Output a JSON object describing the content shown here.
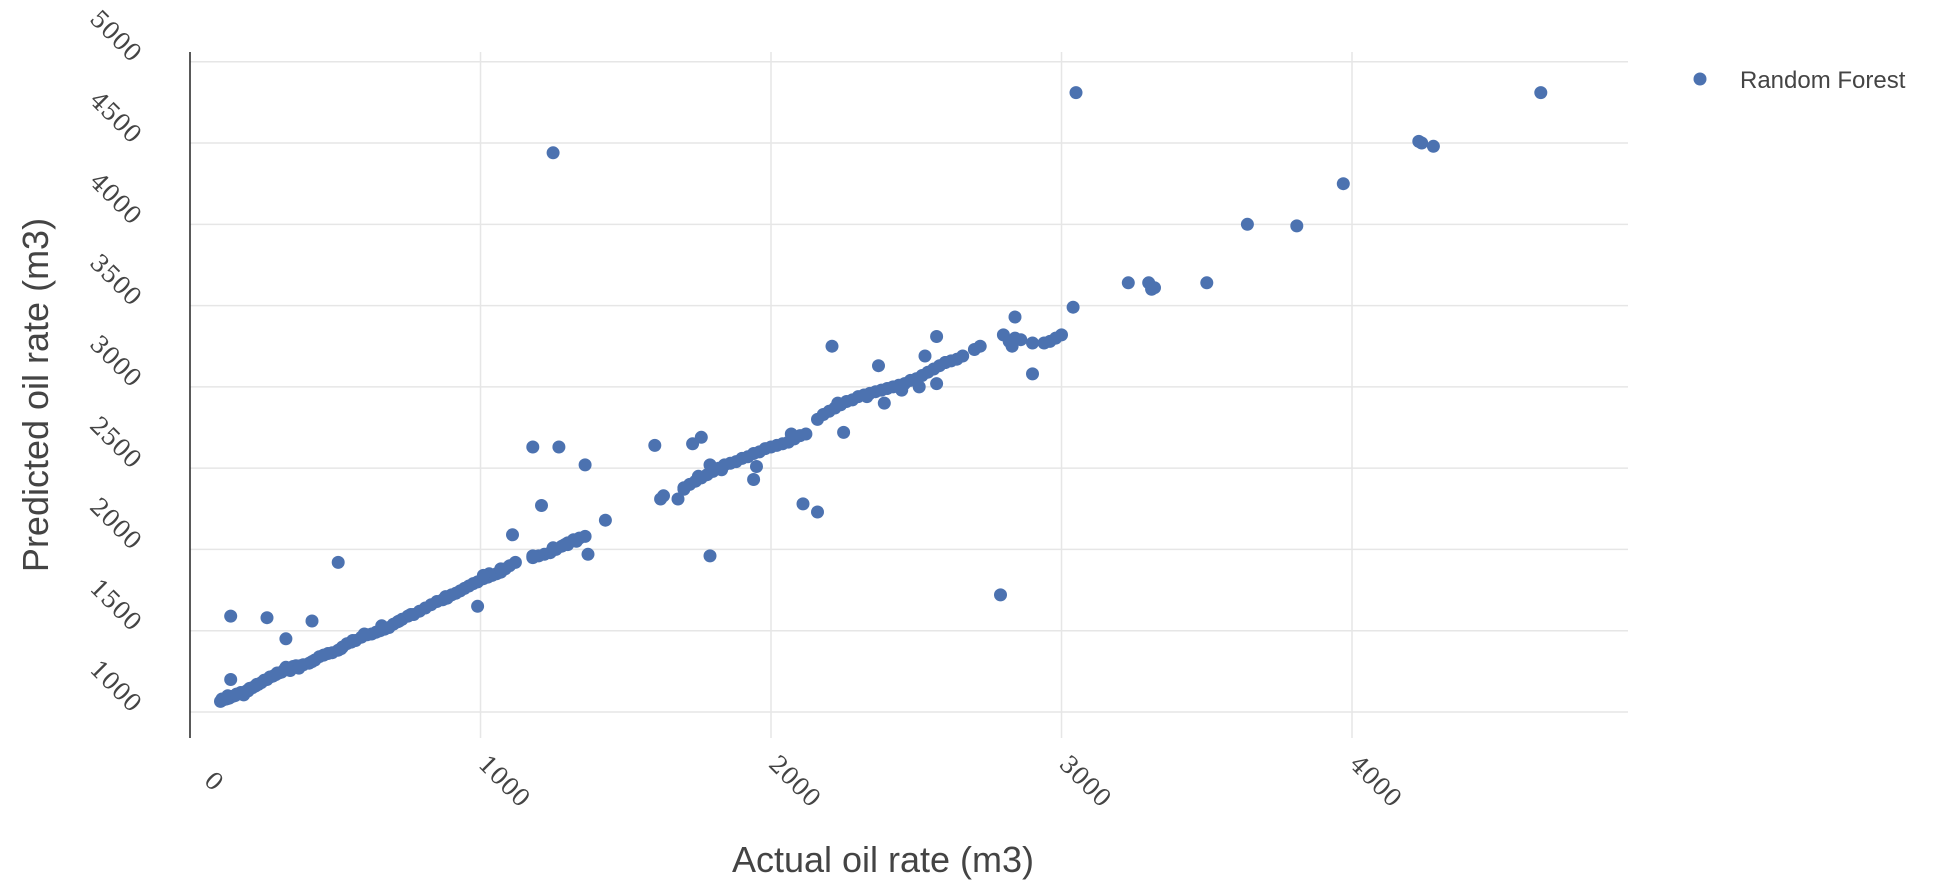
{
  "chart_data": {
    "type": "scatter",
    "title": "",
    "xlabel": "Actual oil rate (m3)",
    "ylabel": "Predicted oil rate (m3)",
    "xlim": [
      0,
      4950
    ],
    "ylim": [
      840,
      5060
    ],
    "xticks": [
      0,
      1000,
      2000,
      3000,
      4000
    ],
    "yticks": [
      1000,
      1500,
      2000,
      2500,
      3000,
      3500,
      4000,
      4500,
      5000
    ],
    "grid": true,
    "legend_position": "top-right",
    "colors": {
      "marker": "#4c72b0"
    },
    "series": [
      {
        "name": "Random Forest",
        "points": [
          [
            105,
            1065
          ],
          [
            115,
            1075
          ],
          [
            125,
            1080
          ],
          [
            135,
            1085
          ],
          [
            145,
            1095
          ],
          [
            155,
            1100
          ],
          [
            165,
            1110
          ],
          [
            175,
            1120
          ],
          [
            185,
            1105
          ],
          [
            195,
            1130
          ],
          [
            205,
            1145
          ],
          [
            215,
            1150
          ],
          [
            225,
            1160
          ],
          [
            235,
            1170
          ],
          [
            245,
            1180
          ],
          [
            255,
            1195
          ],
          [
            265,
            1200
          ],
          [
            275,
            1215
          ],
          [
            285,
            1220
          ],
          [
            295,
            1230
          ],
          [
            305,
            1240
          ],
          [
            315,
            1245
          ],
          [
            325,
            1260
          ],
          [
            335,
            1270
          ],
          [
            345,
            1255
          ],
          [
            355,
            1280
          ],
          [
            365,
            1285
          ],
          [
            375,
            1270
          ],
          [
            390,
            1290
          ],
          [
            410,
            1300
          ],
          [
            430,
            1320
          ],
          [
            445,
            1340
          ],
          [
            460,
            1350
          ],
          [
            475,
            1360
          ],
          [
            490,
            1365
          ],
          [
            510,
            1380
          ],
          [
            525,
            1400
          ],
          [
            540,
            1420
          ],
          [
            555,
            1430
          ],
          [
            570,
            1440
          ],
          [
            590,
            1460
          ],
          [
            610,
            1475
          ],
          [
            625,
            1480
          ],
          [
            640,
            1490
          ],
          [
            655,
            1500
          ],
          [
            670,
            1510
          ],
          [
            685,
            1520
          ],
          [
            700,
            1540
          ],
          [
            715,
            1555
          ],
          [
            730,
            1570
          ],
          [
            750,
            1590
          ],
          [
            770,
            1600
          ],
          [
            790,
            1620
          ],
          [
            810,
            1640
          ],
          [
            830,
            1660
          ],
          [
            850,
            1680
          ],
          [
            870,
            1690
          ],
          [
            885,
            1700
          ],
          [
            900,
            1720
          ],
          [
            915,
            1730
          ],
          [
            930,
            1745
          ],
          [
            945,
            1760
          ],
          [
            960,
            1775
          ],
          [
            975,
            1790
          ],
          [
            990,
            1800
          ],
          [
            1010,
            1820
          ],
          [
            1025,
            1830
          ],
          [
            1040,
            1840
          ],
          [
            1055,
            1850
          ],
          [
            1070,
            1860
          ],
          [
            1085,
            1880
          ],
          [
            1100,
            1900
          ],
          [
            1120,
            1920
          ],
          [
            1180,
            1950
          ],
          [
            1200,
            1960
          ],
          [
            1220,
            1970
          ],
          [
            1240,
            1980
          ],
          [
            1260,
            2000
          ],
          [
            1280,
            2020
          ],
          [
            1300,
            2040
          ],
          [
            1320,
            2060
          ],
          [
            1340,
            2070
          ],
          [
            1360,
            2080
          ],
          [
            1030,
            1850
          ],
          [
            1070,
            1880
          ],
          [
            1180,
            1960
          ],
          [
            1250,
            2010
          ],
          [
            1290,
            2030
          ],
          [
            1330,
            2050
          ],
          [
            1300,
            2030
          ],
          [
            140,
            1200
          ],
          [
            110,
            1080
          ],
          [
            130,
            1100
          ],
          [
            160,
            1110
          ],
          [
            200,
            1130
          ],
          [
            230,
            1170
          ],
          [
            300,
            1240
          ],
          [
            330,
            1275
          ],
          [
            380,
            1285
          ],
          [
            420,
            1310
          ],
          [
            520,
            1390
          ],
          [
            560,
            1440
          ],
          [
            600,
            1480
          ],
          [
            660,
            1530
          ],
          [
            720,
            1560
          ],
          [
            760,
            1600
          ],
          [
            880,
            1710
          ],
          [
            1010,
            1840
          ],
          [
            140,
            1590
          ],
          [
            265,
            1580
          ],
          [
            420,
            1560
          ],
          [
            330,
            1450
          ],
          [
            510,
            1920
          ],
          [
            1180,
            2630
          ],
          [
            1270,
            2630
          ],
          [
            1210,
            2270
          ],
          [
            1360,
            2520
          ],
          [
            1430,
            2180
          ],
          [
            1370,
            1970
          ],
          [
            1110,
            2090
          ],
          [
            990,
            1650
          ],
          [
            1250,
            4440
          ],
          [
            1600,
            2640
          ],
          [
            1620,
            2310
          ],
          [
            1630,
            2330
          ],
          [
            1680,
            2310
          ],
          [
            1700,
            2380
          ],
          [
            1720,
            2400
          ],
          [
            1740,
            2420
          ],
          [
            1760,
            2440
          ],
          [
            1780,
            2460
          ],
          [
            1800,
            2480
          ],
          [
            1820,
            2500
          ],
          [
            1840,
            2520
          ],
          [
            1860,
            2530
          ],
          [
            1880,
            2540
          ],
          [
            1900,
            2560
          ],
          [
            1920,
            2570
          ],
          [
            1940,
            2590
          ],
          [
            1960,
            2600
          ],
          [
            1980,
            2620
          ],
          [
            2000,
            2630
          ],
          [
            2020,
            2640
          ],
          [
            2040,
            2650
          ],
          [
            2060,
            2660
          ],
          [
            2080,
            2680
          ],
          [
            2100,
            2700
          ],
          [
            2120,
            2710
          ],
          [
            2160,
            2800
          ],
          [
            2180,
            2830
          ],
          [
            2200,
            2850
          ],
          [
            2220,
            2870
          ],
          [
            2240,
            2890
          ],
          [
            2260,
            2910
          ],
          [
            2280,
            2920
          ],
          [
            2300,
            2940
          ],
          [
            2320,
            2950
          ],
          [
            2340,
            2960
          ],
          [
            2360,
            2970
          ],
          [
            2380,
            2980
          ],
          [
            2400,
            2990
          ],
          [
            2420,
            3000
          ],
          [
            2440,
            3010
          ],
          [
            2460,
            3020
          ],
          [
            2480,
            3040
          ],
          [
            2500,
            3050
          ],
          [
            2520,
            3070
          ],
          [
            2540,
            3090
          ],
          [
            2560,
            3110
          ],
          [
            2580,
            3130
          ],
          [
            2600,
            3150
          ],
          [
            2620,
            3160
          ],
          [
            2640,
            3170
          ],
          [
            2660,
            3190
          ],
          [
            2700,
            3230
          ],
          [
            2720,
            3250
          ],
          [
            2800,
            3320
          ],
          [
            2820,
            3280
          ],
          [
            2840,
            3300
          ],
          [
            2860,
            3290
          ],
          [
            2900,
            3270
          ],
          [
            2940,
            3270
          ],
          [
            2960,
            3280
          ],
          [
            2980,
            3300
          ],
          [
            3000,
            3320
          ],
          [
            1700,
            2370
          ],
          [
            1750,
            2450
          ],
          [
            1790,
            2520
          ],
          [
            1830,
            2490
          ],
          [
            1950,
            2510
          ],
          [
            2070,
            2710
          ],
          [
            2230,
            2900
          ],
          [
            2330,
            2940
          ],
          [
            2390,
            2900
          ],
          [
            2450,
            2980
          ],
          [
            2510,
            3000
          ],
          [
            2570,
            3020
          ],
          [
            1730,
            2650
          ],
          [
            1760,
            2690
          ],
          [
            1940,
            2430
          ],
          [
            2110,
            2280
          ],
          [
            2160,
            2230
          ],
          [
            1790,
            1960
          ],
          [
            2210,
            3250
          ],
          [
            2250,
            2720
          ],
          [
            2370,
            3130
          ],
          [
            2530,
            3190
          ],
          [
            2570,
            3310
          ],
          [
            2600,
            3150
          ],
          [
            2840,
            3430
          ],
          [
            2830,
            3250
          ],
          [
            2900,
            3080
          ],
          [
            2790,
            1720
          ],
          [
            3040,
            3490
          ],
          [
            3050,
            4810
          ],
          [
            3230,
            3640
          ],
          [
            3300,
            3640
          ],
          [
            3310,
            3600
          ],
          [
            3320,
            3610
          ],
          [
            3500,
            3640
          ],
          [
            3640,
            4000
          ],
          [
            3810,
            3990
          ],
          [
            3970,
            4250
          ],
          [
            4230,
            4510
          ],
          [
            4240,
            4500
          ],
          [
            4280,
            4480
          ],
          [
            4650,
            4810
          ]
        ]
      }
    ]
  }
}
